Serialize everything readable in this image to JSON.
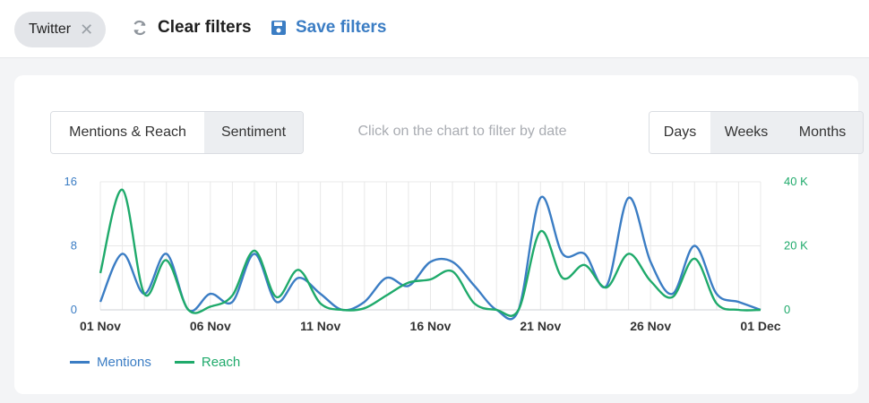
{
  "filters": {
    "chip_label": "Twitter",
    "chip_close": "✕",
    "clear_icon": "refresh-icon",
    "clear_label": "Clear filters",
    "save_icon": "floppy-disk-icon",
    "save_label": "Save filters"
  },
  "panel": {
    "tabs": [
      "Mentions & Reach",
      "Sentiment"
    ],
    "active_tab": "Mentions & Reach",
    "hint": "Click on the chart to filter by date",
    "periods": [
      "Days",
      "Weeks",
      "Months"
    ],
    "active_period": "Days"
  },
  "colors": {
    "mentions": "#3b7dc4",
    "reach": "#1faa6b",
    "grid": "#e8e8e8",
    "axis_text": "#333333"
  },
  "chart_data": {
    "type": "line",
    "x": [
      "01 Nov",
      "02 Nov",
      "03 Nov",
      "04 Nov",
      "05 Nov",
      "06 Nov",
      "07 Nov",
      "08 Nov",
      "09 Nov",
      "10 Nov",
      "11 Nov",
      "12 Nov",
      "13 Nov",
      "14 Nov",
      "15 Nov",
      "16 Nov",
      "17 Nov",
      "18 Nov",
      "19 Nov",
      "20 Nov",
      "21 Nov",
      "22 Nov",
      "23 Nov",
      "24 Nov",
      "25 Nov",
      "26 Nov",
      "27 Nov",
      "28 Nov",
      "29 Nov",
      "30 Nov",
      "01 Dec"
    ],
    "x_tick_labels": [
      "01 Nov",
      "06 Nov",
      "11 Nov",
      "16 Nov",
      "21 Nov",
      "26 Nov",
      "01 Dec"
    ],
    "y_left": {
      "ticks": [
        "0",
        "8",
        "16"
      ],
      "range": [
        0,
        16
      ]
    },
    "y_right": {
      "ticks": [
        "0",
        "20 K",
        "40 K"
      ],
      "range": [
        0,
        40000
      ]
    },
    "series": [
      {
        "name": "Mentions",
        "axis": "left",
        "values": [
          1,
          7,
          2,
          7,
          0,
          2,
          1,
          7,
          1,
          4,
          2,
          0,
          1,
          4,
          3,
          6,
          6,
          3,
          0,
          0,
          14,
          7,
          7,
          3,
          14,
          6,
          2,
          8,
          2,
          1,
          0
        ]
      },
      {
        "name": "Reach",
        "axis": "right",
        "values": [
          11500,
          37500,
          5000,
          15500,
          0,
          1000,
          4500,
          18500,
          4000,
          12500,
          2000,
          0,
          500,
          4500,
          8500,
          9500,
          12000,
          2000,
          0,
          0,
          24500,
          10000,
          14000,
          7000,
          17500,
          9000,
          4000,
          16000,
          2000,
          0,
          0
        ]
      }
    ],
    "legend_position": "bottom-left",
    "grid": true
  }
}
